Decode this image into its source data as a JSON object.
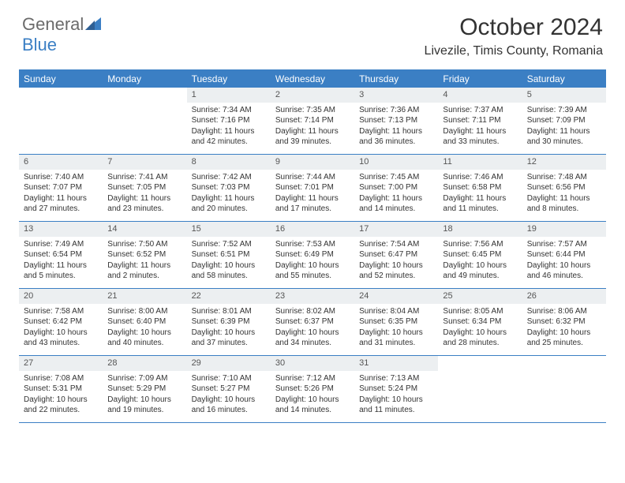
{
  "logo": {
    "word1": "General",
    "word2": "Blue"
  },
  "title": "October 2024",
  "location": "Livezile, Timis County, Romania",
  "colors": {
    "accent": "#3b7fc4",
    "header_text": "#ffffff",
    "bar_bg": "#eceff1",
    "text": "#333333",
    "logo_gray": "#6b6b6b"
  },
  "day_names": [
    "Sunday",
    "Monday",
    "Tuesday",
    "Wednesday",
    "Thursday",
    "Friday",
    "Saturday"
  ],
  "weeks": [
    [
      null,
      null,
      {
        "n": "1",
        "sr": "Sunrise: 7:34 AM",
        "ss": "Sunset: 7:16 PM",
        "dl": "Daylight: 11 hours and 42 minutes."
      },
      {
        "n": "2",
        "sr": "Sunrise: 7:35 AM",
        "ss": "Sunset: 7:14 PM",
        "dl": "Daylight: 11 hours and 39 minutes."
      },
      {
        "n": "3",
        "sr": "Sunrise: 7:36 AM",
        "ss": "Sunset: 7:13 PM",
        "dl": "Daylight: 11 hours and 36 minutes."
      },
      {
        "n": "4",
        "sr": "Sunrise: 7:37 AM",
        "ss": "Sunset: 7:11 PM",
        "dl": "Daylight: 11 hours and 33 minutes."
      },
      {
        "n": "5",
        "sr": "Sunrise: 7:39 AM",
        "ss": "Sunset: 7:09 PM",
        "dl": "Daylight: 11 hours and 30 minutes."
      }
    ],
    [
      {
        "n": "6",
        "sr": "Sunrise: 7:40 AM",
        "ss": "Sunset: 7:07 PM",
        "dl": "Daylight: 11 hours and 27 minutes."
      },
      {
        "n": "7",
        "sr": "Sunrise: 7:41 AM",
        "ss": "Sunset: 7:05 PM",
        "dl": "Daylight: 11 hours and 23 minutes."
      },
      {
        "n": "8",
        "sr": "Sunrise: 7:42 AM",
        "ss": "Sunset: 7:03 PM",
        "dl": "Daylight: 11 hours and 20 minutes."
      },
      {
        "n": "9",
        "sr": "Sunrise: 7:44 AM",
        "ss": "Sunset: 7:01 PM",
        "dl": "Daylight: 11 hours and 17 minutes."
      },
      {
        "n": "10",
        "sr": "Sunrise: 7:45 AM",
        "ss": "Sunset: 7:00 PM",
        "dl": "Daylight: 11 hours and 14 minutes."
      },
      {
        "n": "11",
        "sr": "Sunrise: 7:46 AM",
        "ss": "Sunset: 6:58 PM",
        "dl": "Daylight: 11 hours and 11 minutes."
      },
      {
        "n": "12",
        "sr": "Sunrise: 7:48 AM",
        "ss": "Sunset: 6:56 PM",
        "dl": "Daylight: 11 hours and 8 minutes."
      }
    ],
    [
      {
        "n": "13",
        "sr": "Sunrise: 7:49 AM",
        "ss": "Sunset: 6:54 PM",
        "dl": "Daylight: 11 hours and 5 minutes."
      },
      {
        "n": "14",
        "sr": "Sunrise: 7:50 AM",
        "ss": "Sunset: 6:52 PM",
        "dl": "Daylight: 11 hours and 2 minutes."
      },
      {
        "n": "15",
        "sr": "Sunrise: 7:52 AM",
        "ss": "Sunset: 6:51 PM",
        "dl": "Daylight: 10 hours and 58 minutes."
      },
      {
        "n": "16",
        "sr": "Sunrise: 7:53 AM",
        "ss": "Sunset: 6:49 PM",
        "dl": "Daylight: 10 hours and 55 minutes."
      },
      {
        "n": "17",
        "sr": "Sunrise: 7:54 AM",
        "ss": "Sunset: 6:47 PM",
        "dl": "Daylight: 10 hours and 52 minutes."
      },
      {
        "n": "18",
        "sr": "Sunrise: 7:56 AM",
        "ss": "Sunset: 6:45 PM",
        "dl": "Daylight: 10 hours and 49 minutes."
      },
      {
        "n": "19",
        "sr": "Sunrise: 7:57 AM",
        "ss": "Sunset: 6:44 PM",
        "dl": "Daylight: 10 hours and 46 minutes."
      }
    ],
    [
      {
        "n": "20",
        "sr": "Sunrise: 7:58 AM",
        "ss": "Sunset: 6:42 PM",
        "dl": "Daylight: 10 hours and 43 minutes."
      },
      {
        "n": "21",
        "sr": "Sunrise: 8:00 AM",
        "ss": "Sunset: 6:40 PM",
        "dl": "Daylight: 10 hours and 40 minutes."
      },
      {
        "n": "22",
        "sr": "Sunrise: 8:01 AM",
        "ss": "Sunset: 6:39 PM",
        "dl": "Daylight: 10 hours and 37 minutes."
      },
      {
        "n": "23",
        "sr": "Sunrise: 8:02 AM",
        "ss": "Sunset: 6:37 PM",
        "dl": "Daylight: 10 hours and 34 minutes."
      },
      {
        "n": "24",
        "sr": "Sunrise: 8:04 AM",
        "ss": "Sunset: 6:35 PM",
        "dl": "Daylight: 10 hours and 31 minutes."
      },
      {
        "n": "25",
        "sr": "Sunrise: 8:05 AM",
        "ss": "Sunset: 6:34 PM",
        "dl": "Daylight: 10 hours and 28 minutes."
      },
      {
        "n": "26",
        "sr": "Sunrise: 8:06 AM",
        "ss": "Sunset: 6:32 PM",
        "dl": "Daylight: 10 hours and 25 minutes."
      }
    ],
    [
      {
        "n": "27",
        "sr": "Sunrise: 7:08 AM",
        "ss": "Sunset: 5:31 PM",
        "dl": "Daylight: 10 hours and 22 minutes."
      },
      {
        "n": "28",
        "sr": "Sunrise: 7:09 AM",
        "ss": "Sunset: 5:29 PM",
        "dl": "Daylight: 10 hours and 19 minutes."
      },
      {
        "n": "29",
        "sr": "Sunrise: 7:10 AM",
        "ss": "Sunset: 5:27 PM",
        "dl": "Daylight: 10 hours and 16 minutes."
      },
      {
        "n": "30",
        "sr": "Sunrise: 7:12 AM",
        "ss": "Sunset: 5:26 PM",
        "dl": "Daylight: 10 hours and 14 minutes."
      },
      {
        "n": "31",
        "sr": "Sunrise: 7:13 AM",
        "ss": "Sunset: 5:24 PM",
        "dl": "Daylight: 10 hours and 11 minutes."
      },
      null,
      null
    ]
  ]
}
